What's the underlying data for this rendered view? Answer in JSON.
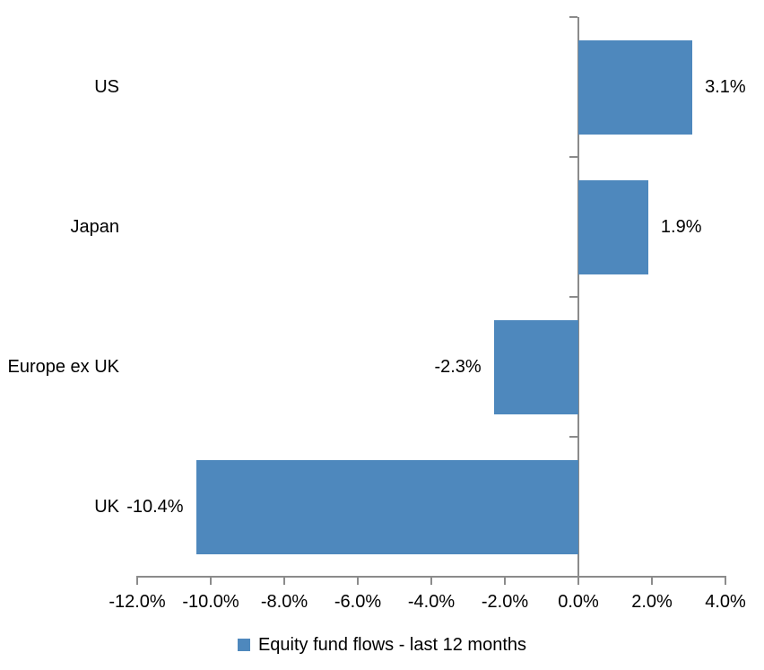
{
  "chart_data": {
    "type": "bar",
    "orientation": "horizontal",
    "title": "",
    "xlabel": "",
    "ylabel": "",
    "categories": [
      "US",
      "Japan",
      "Europe ex UK",
      "UK"
    ],
    "series": [
      {
        "name": "Equity fund flows - last 12 months",
        "values": [
          3.1,
          1.9,
          -2.3,
          -10.4
        ],
        "data_labels": [
          "3.1%",
          "1.9%",
          "-2.3%",
          "-10.4%"
        ]
      }
    ],
    "xlim": [
      -12,
      4
    ],
    "x_tick_values": [
      -12,
      -10,
      -8,
      -6,
      -4,
      -2,
      0,
      2,
      4
    ],
    "x_tick_labels": [
      "-12.0%",
      "-10.0%",
      "-8.0%",
      "-6.0%",
      "-4.0%",
      "-2.0%",
      "0.0%",
      "2.0%",
      "4.0%"
    ],
    "grid": false,
    "legend_position": "bottom",
    "colors": {
      "bar": "#4E88BD",
      "axis": "#8B8B8B",
      "text": "#000000",
      "background": "#FFFFFF"
    }
  },
  "legend": {
    "label": "Equity fund flows - last 12 months"
  }
}
